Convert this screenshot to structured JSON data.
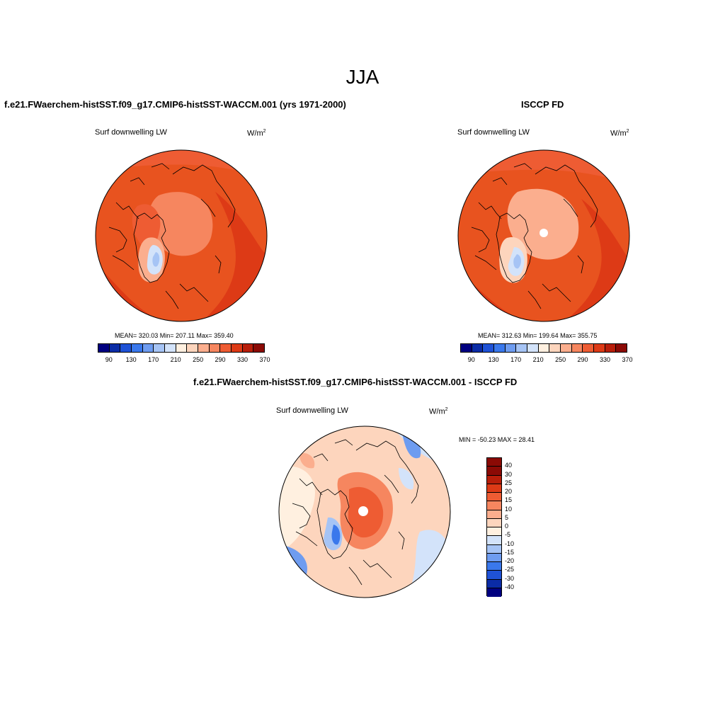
{
  "season": "JJA",
  "panels": [
    {
      "title": "f.e21.FWaerchem-histSST.f09_g17.CMIP6-histSST-WACCM.001 (yrs 1971-2000)",
      "variable": "Surf downwelling LW",
      "units": "W/m",
      "units_sup": "2",
      "stats": "MEAN= 320.03  Min= 207.11  Max= 359.40"
    },
    {
      "title": "ISCCP FD",
      "variable": "Surf downwelling LW",
      "units": "W/m",
      "units_sup": "2",
      "stats": "MEAN= 312.63  Min= 199.64  Max= 355.75"
    }
  ],
  "diff_panel": {
    "title": "f.e21.FWaerchem-histSST.f09_g17.CMIP6-histSST-WACCM.001 - ISCCP FD",
    "variable": "Surf downwelling LW",
    "units": "W/m",
    "units_sup": "2",
    "minmax": "MIN = -50.23 MAX =  28.41"
  },
  "colorbar_main": {
    "colors": [
      "#000080",
      "#0b2ca6",
      "#1f52d6",
      "#3a78ec",
      "#6e9cf0",
      "#a6c4f5",
      "#d3e3fa",
      "#fff0e0",
      "#fdd5bd",
      "#fbae8e",
      "#f6865f",
      "#ee5c33",
      "#dd3a16",
      "#b81e0a",
      "#8b0a05"
    ],
    "ticks": [
      "90",
      "130",
      "170",
      "210",
      "250",
      "290",
      "330",
      "370"
    ]
  },
  "colorbar_diff": {
    "colors": [
      "#8b0a05",
      "#b81e0a",
      "#dd3a16",
      "#ee5c33",
      "#f6865f",
      "#fbae8e",
      "#fdd5bd",
      "#fff0e0",
      "#d3e3fa",
      "#a6c4f5",
      "#6e9cf0",
      "#3a78ec",
      "#1f52d6",
      "#0b2ca6",
      "#000080"
    ],
    "ticks": [
      "40",
      "30",
      "25",
      "20",
      "15",
      "10",
      "5",
      "0",
      "-5",
      "-10",
      "-15",
      "-20",
      "-25",
      "-30",
      "-40"
    ]
  }
}
